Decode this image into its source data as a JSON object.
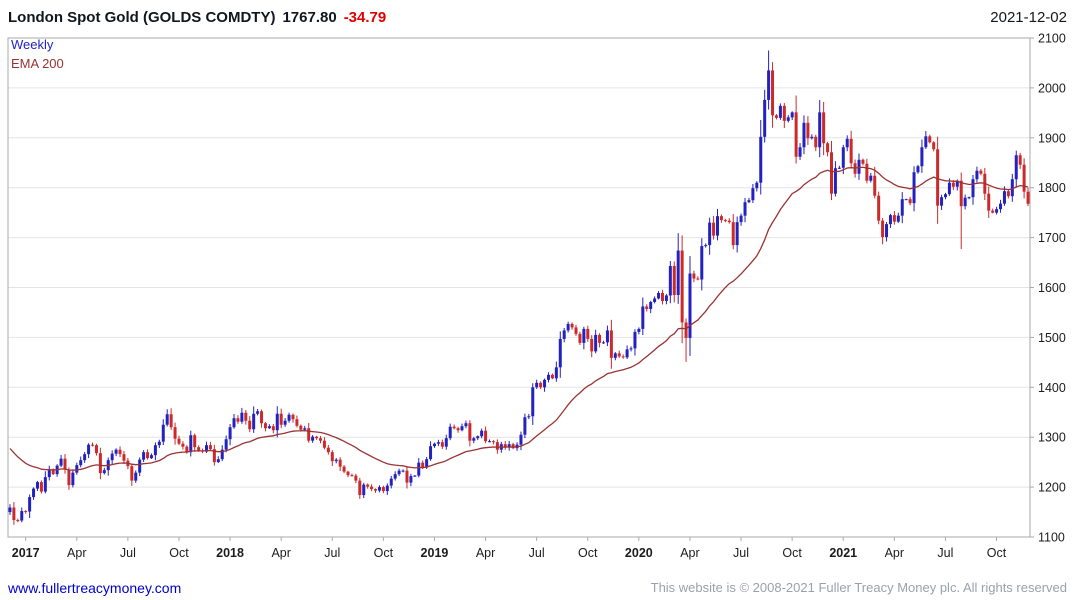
{
  "header": {
    "instrument": "London Spot Gold (GOLDS COMDTY)",
    "last_price": "1767.80",
    "change": "-34.79",
    "date": "2021-12-02"
  },
  "legend": {
    "timeframe": "Weekly",
    "overlay": "EMA 200"
  },
  "footer": {
    "link": "www.fullertreacymoney.com",
    "copyright": "This website is © 2008-2021 Fuller Treacy Money plc. All rights reserved"
  },
  "colors": {
    "up": "#2222c0",
    "down": "#cc2a2a",
    "ema": "#993333",
    "grid": "#e4e4e4",
    "frame": "#aaaaaa",
    "change": "#e00000",
    "link": "#0000cc"
  },
  "chart_data": {
    "type": "candlestick",
    "title": "London Spot Gold (GOLDS COMDTY)",
    "timeframe": "weekly",
    "last_price": 1767.8,
    "change": -34.79,
    "date": "2021-12-02",
    "ylim": [
      1100,
      2100
    ],
    "y_ticks": [
      2100,
      2000,
      1900,
      1800,
      1700,
      1600,
      1500,
      1400,
      1300,
      1200,
      1100
    ],
    "x_ticks": [
      {
        "label": "2017",
        "month": 0,
        "bold": true
      },
      {
        "label": "Apr",
        "month": 3,
        "bold": false
      },
      {
        "label": "Jul",
        "month": 6,
        "bold": false
      },
      {
        "label": "Oct",
        "month": 9,
        "bold": false
      },
      {
        "label": "2018",
        "month": 12,
        "bold": true
      },
      {
        "label": "Apr",
        "month": 15,
        "bold": false
      },
      {
        "label": "Jul",
        "month": 18,
        "bold": false
      },
      {
        "label": "Oct",
        "month": 21,
        "bold": false
      },
      {
        "label": "2019",
        "month": 24,
        "bold": true
      },
      {
        "label": "Apr",
        "month": 27,
        "bold": false
      },
      {
        "label": "Jul",
        "month": 30,
        "bold": false
      },
      {
        "label": "Oct",
        "month": 33,
        "bold": false
      },
      {
        "label": "2020",
        "month": 36,
        "bold": true
      },
      {
        "label": "Apr",
        "month": 39,
        "bold": false
      },
      {
        "label": "Jul",
        "month": 42,
        "bold": false
      },
      {
        "label": "Oct",
        "month": 45,
        "bold": false
      },
      {
        "label": "2021",
        "month": 48,
        "bold": true
      },
      {
        "label": "Apr",
        "month": 51,
        "bold": false
      },
      {
        "label": "Jul",
        "month": 54,
        "bold": false
      },
      {
        "label": "Oct",
        "month": 57,
        "bold": false
      }
    ],
    "x_start_offset": 4,
    "weeks_per_month": 4.333,
    "weekly_closes": [
      1159,
      1134,
      1133,
      1152,
      1151,
      1180,
      1197,
      1210,
      1191,
      1220,
      1234,
      1226,
      1243,
      1257,
      1235,
      1204,
      1229,
      1244,
      1254,
      1266,
      1285,
      1284,
      1268,
      1228,
      1234,
      1254,
      1267,
      1275,
      1266,
      1253,
      1242,
      1213,
      1229,
      1255,
      1270,
      1258,
      1264,
      1284,
      1291,
      1325,
      1346,
      1320,
      1297,
      1287,
      1281,
      1270,
      1304,
      1280,
      1273,
      1271,
      1284,
      1276,
      1250,
      1256,
      1275,
      1296,
      1320,
      1338,
      1331,
      1349,
      1333,
      1316,
      1347,
      1352,
      1328,
      1318,
      1322,
      1314,
      1347,
      1325,
      1333,
      1345,
      1336,
      1323,
      1315,
      1318,
      1293,
      1301,
      1298,
      1293,
      1279,
      1270,
      1252,
      1255,
      1241,
      1231,
      1224,
      1223,
      1213,
      1184,
      1205,
      1201,
      1196,
      1193,
      1200,
      1192,
      1203,
      1217,
      1226,
      1233,
      1233,
      1209,
      1222,
      1223,
      1249,
      1239,
      1256,
      1282,
      1287,
      1290,
      1281,
      1298,
      1321,
      1318,
      1314,
      1322,
      1328,
      1293,
      1298,
      1302,
      1313,
      1292,
      1292,
      1290,
      1275,
      1286,
      1279,
      1286,
      1278,
      1285,
      1305,
      1340,
      1342,
      1400,
      1409,
      1400,
      1415,
      1425,
      1418,
      1440,
      1497,
      1514,
      1527,
      1520,
      1507,
      1489,
      1517,
      1497,
      1472,
      1505,
      1489,
      1490,
      1514,
      1459,
      1468,
      1462,
      1460,
      1476,
      1478,
      1511,
      1517,
      1562,
      1557,
      1571,
      1578,
      1589,
      1573,
      1584,
      1643,
      1585,
      1674,
      1530,
      1499,
      1628,
      1618,
      1616,
      1683,
      1685,
      1730,
      1704,
      1743,
      1735,
      1734,
      1731,
      1685,
      1731,
      1744,
      1771,
      1775,
      1799,
      1810,
      1902,
      1976,
      2035,
      1945,
      1940,
      1964,
      1934,
      1941,
      1951,
      1862,
      1881,
      1930,
      1899,
      1902,
      1881,
      1951,
      1889,
      1871,
      1788,
      1839,
      1840,
      1881,
      1898,
      1849,
      1828,
      1856,
      1848,
      1814,
      1824,
      1784,
      1734,
      1701,
      1727,
      1745,
      1732,
      1744,
      1777,
      1777,
      1769,
      1831,
      1843,
      1881,
      1903,
      1891,
      1877,
      1764,
      1781,
      1787,
      1810,
      1802,
      1814,
      1763,
      1780,
      1781,
      1817,
      1834,
      1828,
      1788,
      1754,
      1750,
      1757,
      1768,
      1793,
      1783,
      1817,
      1865,
      1846,
      1792,
      1767.8
    ],
    "wick_overrides": {
      "high": {
        "193": 2075
      },
      "low": {
        "172": 1451,
        "242": 1677
      }
    },
    "ema": {
      "label": "EMA 200",
      "period_weeks": 32,
      "start_value": 1285
    },
    "legend_position": "top-left",
    "grid": "horizontal",
    "y_axis_side": "right"
  }
}
